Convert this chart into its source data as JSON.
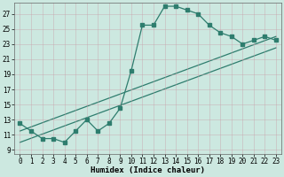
{
  "xlabel": "Humidex (Indice chaleur)",
  "background_color": "#cce8e0",
  "grid_color_major": "#b8d4cc",
  "grid_color_minor": "#d8eae6",
  "line_color": "#2e7d6e",
  "xlim": [
    -0.5,
    23.5
  ],
  "ylim": [
    8.5,
    28.5
  ],
  "xticks": [
    0,
    1,
    2,
    3,
    4,
    5,
    6,
    7,
    8,
    9,
    10,
    11,
    12,
    13,
    14,
    15,
    16,
    17,
    18,
    19,
    20,
    21,
    22,
    23
  ],
  "yticks": [
    9,
    11,
    13,
    15,
    17,
    19,
    21,
    23,
    25,
    27
  ],
  "series1_x": [
    0,
    1,
    2,
    3,
    4,
    5,
    6,
    7,
    8,
    9,
    10,
    11,
    12,
    13,
    14,
    15,
    16,
    17,
    18,
    19,
    20,
    21,
    22,
    23
  ],
  "series1_y": [
    12.5,
    11.5,
    10.5,
    10.5,
    10.0,
    11.5,
    13.0,
    11.5,
    12.5,
    14.5,
    19.5,
    25.5,
    25.5,
    28.0,
    28.0,
    27.5,
    27.0,
    25.5,
    24.5,
    24.0,
    23.0,
    23.5,
    24.0,
    23.5
  ],
  "series2_x": [
    0,
    23
  ],
  "series2_y": [
    11.5,
    24.0
  ],
  "series3_x": [
    0,
    23
  ],
  "series3_y": [
    10.0,
    22.5
  ],
  "marker_size": 2.5,
  "linewidth": 0.9,
  "tick_fontsize": 5.5,
  "xlabel_fontsize": 6.5
}
